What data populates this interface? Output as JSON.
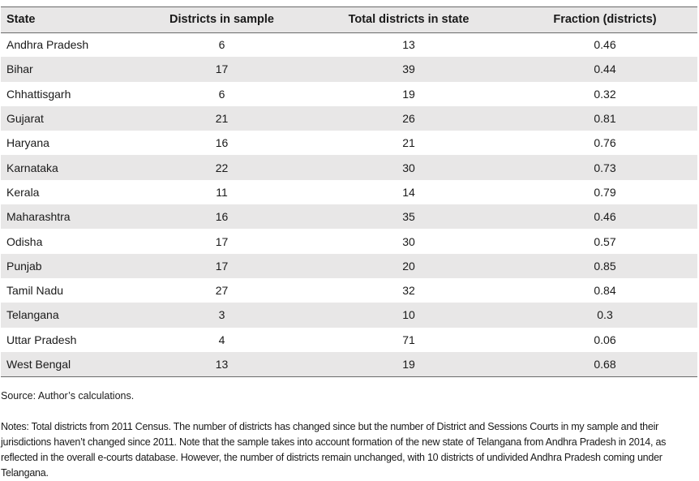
{
  "table": {
    "headers": [
      "State",
      "Districts in sample",
      "Total districts in state",
      "Fraction (districts)"
    ],
    "rows": [
      [
        "Andhra Pradesh",
        "6",
        "13",
        "0.46"
      ],
      [
        "Bihar",
        "17",
        "39",
        "0.44"
      ],
      [
        "Chhattisgarh",
        "6",
        "19",
        "0.32"
      ],
      [
        "Gujarat",
        "21",
        "26",
        "0.81"
      ],
      [
        "Haryana",
        "16",
        "21",
        "0.76"
      ],
      [
        "Karnataka",
        "22",
        "30",
        "0.73"
      ],
      [
        "Kerala",
        "11",
        "14",
        "0.79"
      ],
      [
        "Maharashtra",
        "16",
        "35",
        "0.46"
      ],
      [
        "Odisha",
        "17",
        "30",
        "0.57"
      ],
      [
        "Punjab",
        "17",
        "20",
        "0.85"
      ],
      [
        "Tamil Nadu",
        "27",
        "32",
        "0.84"
      ],
      [
        "Telangana",
        "3",
        "10",
        "0.3"
      ],
      [
        "Uttar Pradesh",
        "4",
        "71",
        "0.06"
      ],
      [
        "West Bengal",
        "13",
        "19",
        "0.68"
      ]
    ]
  },
  "source": "Source: Author’s calculations.",
  "notes": "Notes: Total districts from 2011 Census. The number of districts has changed since but the number of District and Sessions Courts in my sample and their jurisdictions haven’t changed since 2011. Note that the sample takes into account formation of the new state of Telangana from Andhra Pradesh in 2014, as reflected in the overall e-courts database. However, the number of districts remain unchanged, with 10 districts of undivided Andhra Pradesh coming under Telangana."
}
